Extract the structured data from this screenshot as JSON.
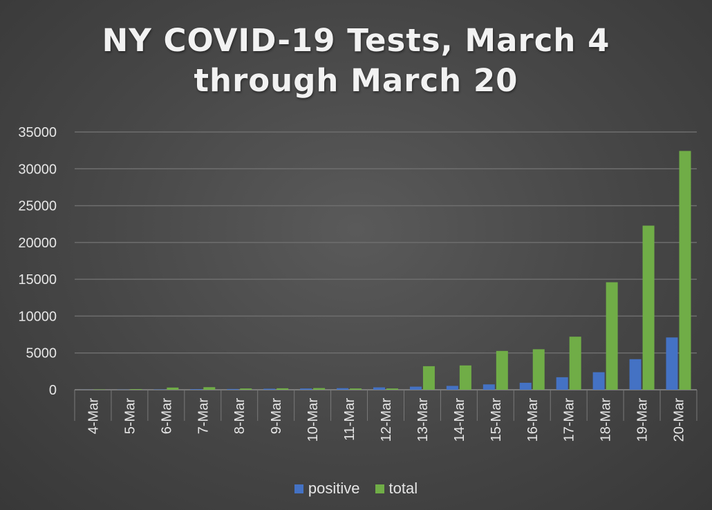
{
  "chart_data": {
    "type": "bar",
    "title_lines": [
      "NY COVID-19 Tests, March 4",
      "through March 20"
    ],
    "categories": [
      "4-Mar",
      "5-Mar",
      "6-Mar",
      "7-Mar",
      "8-Mar",
      "9-Mar",
      "10-Mar",
      "11-Mar",
      "12-Mar",
      "13-Mar",
      "14-Mar",
      "15-Mar",
      "16-Mar",
      "17-Mar",
      "18-Mar",
      "19-Mar",
      "20-Mar"
    ],
    "series": [
      {
        "name": "positive",
        "color": "#4472c4",
        "values": [
          11,
          22,
          44,
          89,
          106,
          142,
          173,
          216,
          325,
          421,
          524,
          729,
          950,
          1700,
          2382,
          4152,
          7102
        ]
      },
      {
        "name": "total",
        "color": "#70ad47",
        "values": [
          48,
          92,
          300,
          350,
          175,
          200,
          230,
          175,
          175,
          3200,
          3303,
          5272,
          5500,
          7206,
          14597,
          22284,
          32427
        ]
      }
    ],
    "ylim": [
      0,
      35000
    ],
    "yticks": [
      0,
      5000,
      10000,
      15000,
      20000,
      25000,
      30000,
      35000
    ],
    "grid": true,
    "legend_position": "bottom"
  }
}
